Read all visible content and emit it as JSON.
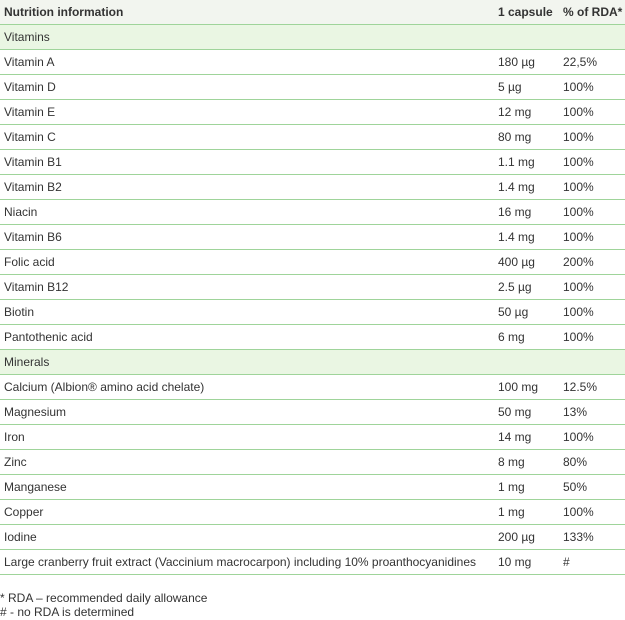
{
  "table": {
    "header": [
      "Nutrition information",
      "1 capsule",
      "% of RDA*"
    ],
    "sections": [
      {
        "title": "Vitamins",
        "rows": [
          [
            "Vitamin A",
            "180 µg",
            "22,5%"
          ],
          [
            "Vitamin D",
            "5 µg",
            "100%"
          ],
          [
            "Vitamin E",
            "12 mg",
            "100%"
          ],
          [
            "Vitamin C",
            "80 mg",
            "100%"
          ],
          [
            "Vitamin B1",
            "1.1 mg",
            "100%"
          ],
          [
            "Vitamin B2",
            "1.4 mg",
            "100%"
          ],
          [
            "Niacin",
            "16 mg",
            "100%"
          ],
          [
            "Vitamin B6",
            "1.4 mg",
            "100%"
          ],
          [
            "Folic acid",
            "400 µg",
            "200%"
          ],
          [
            "Vitamin B12",
            "2.5 µg",
            "100%"
          ],
          [
            "Biotin",
            "50 µg",
            "100%"
          ],
          [
            "Pantothenic acid",
            "6 mg",
            "100%"
          ]
        ]
      },
      {
        "title": "Minerals",
        "rows": [
          [
            "Calcium (Albion® amino acid chelate)",
            "100 mg",
            "12.5%"
          ],
          [
            "Magnesium",
            "50 mg",
            "13%"
          ],
          [
            "Iron",
            "14 mg",
            "100%"
          ],
          [
            "Zinc",
            "8 mg",
            "80%"
          ],
          [
            "Manganese",
            "1 mg",
            "50%"
          ],
          [
            "Copper",
            "1 mg",
            "100%"
          ],
          [
            "Iodine",
            "200 µg",
            "133%"
          ],
          [
            "Large cranberry fruit extract (Vaccinium macrocarpon) including 10% proanthocyanidines",
            "10 mg",
            "#"
          ]
        ]
      }
    ]
  },
  "footnotes": [
    "* RDA – recommended daily allowance",
    "# - no RDA is determined"
  ]
}
